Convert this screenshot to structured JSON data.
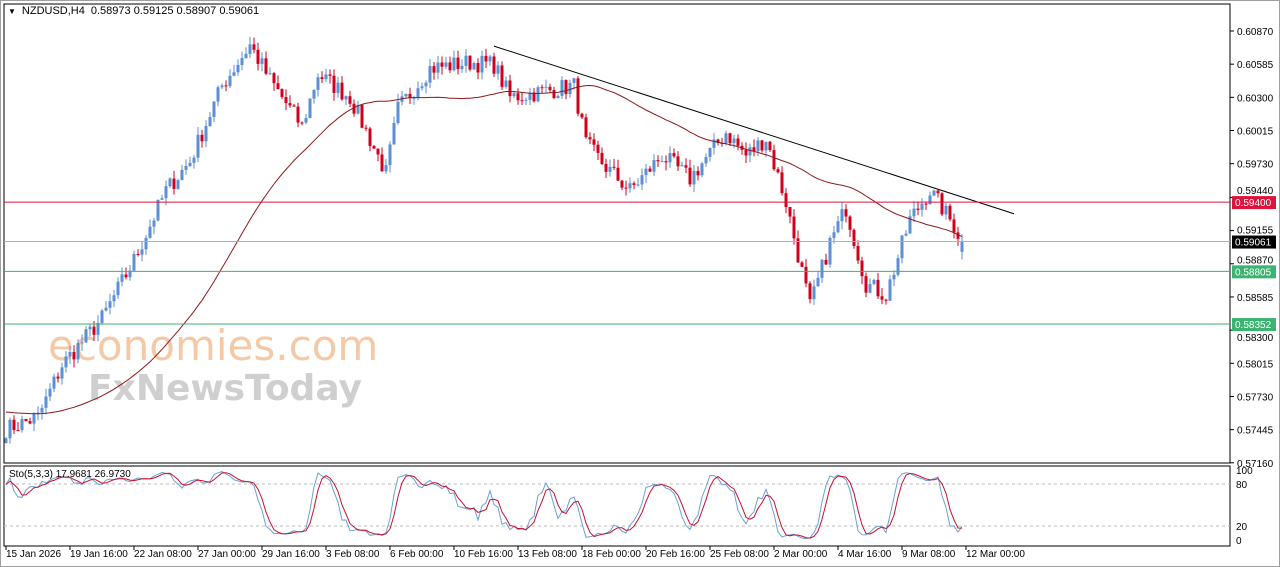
{
  "header": {
    "symbol": "NZDUSD,H4",
    "ohlc": "0.58973 0.59125 0.58907 0.59061",
    "menu_icon": "triangle-down"
  },
  "stochastic": {
    "label": "Sto(5,3,3) 17.9681 26.9730",
    "levels": [
      "100",
      "80",
      "20",
      "0"
    ]
  },
  "logo": {
    "line1": "economies.com",
    "line2": "FxNewsToday"
  },
  "colors": {
    "bull": "#5b8fd6",
    "bear": "#d0021b",
    "ma": "#8b1a1a",
    "resistance": "#dc143c",
    "support": "#3cb371",
    "current": "#000000",
    "stoch_main": "#6a9fd4",
    "stoch_signal": "#c8102e"
  },
  "chart_data": {
    "type": "candlestick",
    "symbol": "NZDUSD",
    "timeframe": "H4",
    "y_range": [
      0.5716,
      0.6095
    ],
    "price_ticks": [
      "0.60870",
      "0.60585",
      "0.60300",
      "0.60015",
      "0.59730",
      "0.59440",
      "0.59155",
      "0.58870",
      "0.58585",
      "0.58300",
      "0.58015",
      "0.57730",
      "0.57445",
      "0.57160"
    ],
    "time_ticks": [
      "15 Jan 2026",
      "19 Jan 16:00",
      "22 Jan 08:00",
      "27 Jan 00:00",
      "29 Jan 16:00",
      "3 Feb 08:00",
      "6 Feb 00:00",
      "10 Feb 16:00",
      "13 Feb 08:00",
      "18 Feb 00:00",
      "20 Feb 16:00",
      "25 Feb 08:00",
      "2 Mar 00:00",
      "4 Mar 16:00",
      "9 Mar 08:00",
      "12 Mar 00:00"
    ],
    "close_keypoints": [
      [
        "15 Jan 00:00",
        0.5745
      ],
      [
        "16 Jan 08:00",
        0.5755
      ],
      [
        "19 Jan 08:00",
        0.58
      ],
      [
        "21 Jan 00:00",
        0.584
      ],
      [
        "22 Jan 08:00",
        0.589
      ],
      [
        "23 Jan 16:00",
        0.595
      ],
      [
        "26 Jan 16:00",
        0.5975
      ],
      [
        "28 Jan 00:00",
        0.604
      ],
      [
        "29 Jan 04:00",
        0.6075
      ],
      [
        "30 Jan 00:00",
        0.6045
      ],
      [
        "2 Feb 08:00",
        0.6005
      ],
      [
        "3 Feb 00:00",
        0.605
      ],
      [
        "4 Feb 08:00",
        0.603
      ],
      [
        "5 Feb 20:00",
        0.5965
      ],
      [
        "6 Feb 08:00",
        0.602
      ],
      [
        "9 Feb 16:00",
        0.6055
      ],
      [
        "11 Feb 08:00",
        0.606
      ],
      [
        "12 Feb 08:00",
        0.6058
      ],
      [
        "13 Feb 00:00",
        0.603
      ],
      [
        "16 Feb 08:00",
        0.6035
      ],
      [
        "17 Feb 16:00",
        0.604
      ],
      [
        "18 Feb 04:00",
        0.599
      ],
      [
        "19 Feb 00:00",
        0.597
      ],
      [
        "20 Feb 00:00",
        0.595
      ],
      [
        "23 Feb 08:00",
        0.598
      ],
      [
        "24 Feb 12:00",
        0.596
      ],
      [
        "26 Feb 00:00",
        0.6
      ],
      [
        "26 Feb 20:00",
        0.598
      ],
      [
        "27 Feb 16:00",
        0.5995
      ],
      [
        "2 Mar 12:00",
        0.594
      ],
      [
        "3 Mar 12:00",
        0.585
      ],
      [
        "4 Mar 08:00",
        0.5905
      ],
      [
        "5 Mar 00:00",
        0.5935
      ],
      [
        "5 Mar 20:00",
        0.587
      ],
      [
        "6 Mar 16:00",
        0.586
      ],
      [
        "9 Mar 16:00",
        0.5925
      ],
      [
        "10 Mar 12:00",
        0.595
      ],
      [
        "11 Mar 12:00",
        0.592
      ],
      [
        "11 Mar 20:00",
        0.59061
      ]
    ],
    "last_candle": {
      "open": 0.58973,
      "high": 0.59125,
      "low": 0.58907,
      "close": 0.59061
    },
    "horizontal_lines": [
      {
        "price": 0.594,
        "label": "0.59400",
        "role": "resistance"
      },
      {
        "price": 0.59061,
        "label": "0.59061",
        "role": "current"
      },
      {
        "price": 0.58805,
        "label": "0.58805",
        "role": "support"
      },
      {
        "price": 0.58352,
        "label": "0.58352",
        "role": "support"
      }
    ],
    "trendline": {
      "from": [
        "12 Feb 08:00",
        0.6074
      ],
      "to": [
        "16 Mar 00:00",
        0.593
      ]
    },
    "moving_average": {
      "type": "SMA",
      "period": 50
    },
    "stochastic_levels": [
      80,
      20
    ]
  }
}
